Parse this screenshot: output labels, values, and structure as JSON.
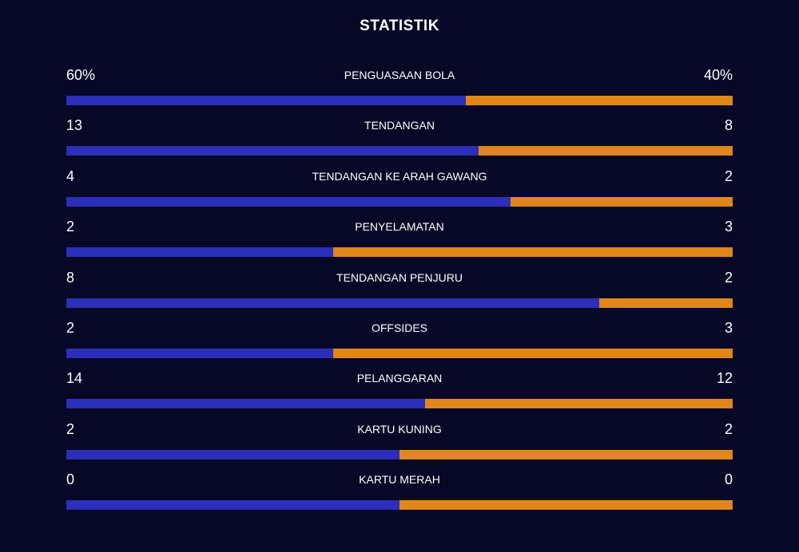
{
  "header": {
    "title": "STATISTIK"
  },
  "stats": [
    {
      "label": "PENGUASAAN BOLA",
      "home": 60,
      "home_label": "60%",
      "away": 40,
      "away_label": "40%"
    },
    {
      "label": "TENDANGAN",
      "home": 13,
      "away": 8
    },
    {
      "label": "TENDANGAN KE ARAH GAWANG",
      "home": 4,
      "away": 2
    },
    {
      "label": "PENYELAMATAN",
      "home": 2,
      "away": 3
    },
    {
      "label": "TENDANGAN PENJURU",
      "home": 8,
      "away": 2
    },
    {
      "label": "OFFSIDES",
      "home": 2,
      "away": 3
    },
    {
      "label": "PELANGGARAN",
      "home": 14,
      "away": 12
    },
    {
      "label": "KARTU KUNING",
      "home": 2,
      "away": 2
    },
    {
      "label": "KARTU MERAH",
      "home": 0,
      "away": 0
    }
  ],
  "colors": {
    "home": "#2b2fb9",
    "away": "#e0861b"
  }
}
